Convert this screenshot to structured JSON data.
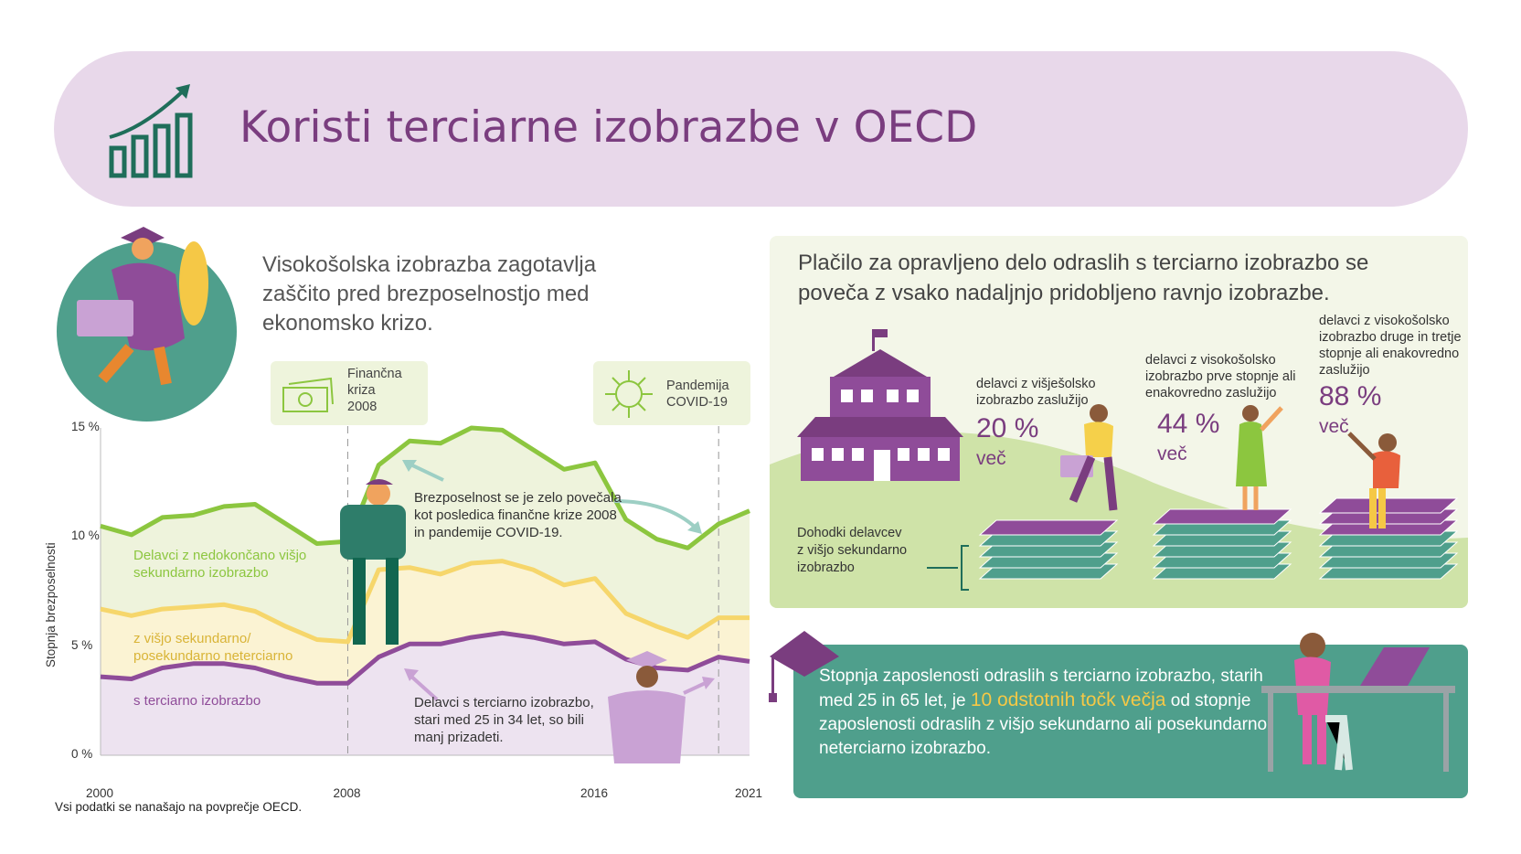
{
  "banner": {
    "title": "Koristi terciarne izobrazbe v OECD"
  },
  "intro": {
    "text": "Visokošolska izobrazba zagotavlja zaščito pred brezposelnostjo med ekonomsko krizo."
  },
  "events": [
    {
      "label": "Finančna kriza 2008",
      "lines": [
        "Finančna",
        "kriza",
        "2008"
      ],
      "icon": "money-icon"
    },
    {
      "label": "Pandemija COVID-19",
      "lines": [
        "Pandemija",
        "COVID-19"
      ],
      "icon": "virus-icon"
    }
  ],
  "chart_data": {
    "type": "line",
    "ylabel": "Stopnja brezposelnosti",
    "ylim": [
      0,
      15
    ],
    "yticks": [
      {
        "value": 0,
        "label": "0 %"
      },
      {
        "value": 5,
        "label": "5 %"
      },
      {
        "value": 10,
        "label": "10 %"
      },
      {
        "value": 15,
        "label": "15 %"
      }
    ],
    "xlim": [
      2000,
      2021
    ],
    "xticks": [
      "2000",
      "2008",
      "2016",
      "2021"
    ],
    "vlines": [
      2008,
      2020
    ],
    "series": [
      {
        "name": "Delavci z nedokončano višjo sekundarno izobrazbo",
        "color": "#8cc63f",
        "fill": "#eef3dc",
        "x": [
          2000,
          2001,
          2002,
          2003,
          2004,
          2005,
          2006,
          2007,
          2008,
          2009,
          2010,
          2011,
          2012,
          2013,
          2014,
          2015,
          2016,
          2017,
          2018,
          2019,
          2020,
          2021
        ],
        "values": [
          10.5,
          10.1,
          10.9,
          11.0,
          11.4,
          11.5,
          10.6,
          9.7,
          9.8,
          13.3,
          14.4,
          14.3,
          15.0,
          14.9,
          14.0,
          13.1,
          13.4,
          10.8,
          9.9,
          9.5,
          10.6,
          11.2
        ]
      },
      {
        "name": "z višjo sekundarno/ posekundarno neterciarno",
        "color": "#f6d66b",
        "fill": "#fbf3d3",
        "x": [
          2000,
          2001,
          2002,
          2003,
          2004,
          2005,
          2006,
          2007,
          2008,
          2009,
          2010,
          2011,
          2012,
          2013,
          2014,
          2015,
          2016,
          2017,
          2018,
          2019,
          2020,
          2021
        ],
        "values": [
          6.7,
          6.4,
          6.7,
          6.8,
          6.9,
          6.6,
          5.9,
          5.3,
          5.2,
          8.5,
          8.6,
          8.3,
          8.8,
          8.9,
          8.5,
          7.8,
          8.1,
          6.5,
          5.9,
          5.4,
          6.3,
          6.3
        ]
      },
      {
        "name": "s terciarno izobrazbo",
        "color": "#8f4c99",
        "fill": "#ede3f0",
        "x": [
          2000,
          2001,
          2002,
          2003,
          2004,
          2005,
          2006,
          2007,
          2008,
          2009,
          2010,
          2011,
          2012,
          2013,
          2014,
          2015,
          2016,
          2017,
          2018,
          2019,
          2020,
          2021
        ],
        "values": [
          3.6,
          3.5,
          4.0,
          4.2,
          4.2,
          4.0,
          3.6,
          3.3,
          3.3,
          4.5,
          5.1,
          5.1,
          5.4,
          5.6,
          5.4,
          5.1,
          5.2,
          4.4,
          4.0,
          3.9,
          4.5,
          4.3
        ]
      }
    ],
    "series_labels": [
      [
        "Delavci z nedokončano višjo",
        "sekundarno izobrazbo"
      ],
      [
        "z višjo sekundarno/",
        "posekundarno neterciarno"
      ],
      [
        "s terciarno izobrazbo"
      ]
    ],
    "annotations": [
      [
        "Brezposelnost se je zelo povečala",
        "kot posledica finančne krize 2008",
        "in pandemije COVID-19."
      ],
      [
        "Delavci s terciarno izobrazbo,",
        "stari med 25 in 34 let, so bili",
        "manj prizadeti."
      ]
    ]
  },
  "footnote": "Vsi podatki se nanašajo na povprečje OECD.",
  "pay": {
    "title": "Plačilo za opravljeno delo odraslih s terciarno izobrazbo se poveča z vsako nadaljnjo pridobljeno ravnjo izobrazbe.",
    "income_label": [
      "Dohodki delavcev",
      "z višjo sekundarno",
      "izobrazbo"
    ],
    "levels": [
      {
        "label": [
          "delavci z višješolsko",
          "izobrazbo zaslužijo"
        ],
        "percent": "20 %",
        "more": "več"
      },
      {
        "label": [
          "delavci z visokošolsko",
          "izobrazbo prve stopnje ali",
          "enakovredno zaslužijo"
        ],
        "percent": "44 %",
        "more": "več"
      },
      {
        "label": [
          "delavci z visokošolsko",
          "izobrazbo druge in tretje",
          "stopnje ali enakovredno",
          "zaslužijo"
        ],
        "percent": "88 %",
        "more": "več"
      }
    ]
  },
  "employment": {
    "before": "Stopnja zaposlenosti odraslih s terciarno izobrazbo, starih med 25 in 65 let, je ",
    "highlight": "10 odstotnih točk večja",
    "after": " od stopnje zaposlenosti odraslih z višjo sekundarno ali posekundarno neterciarno izobrazbo."
  },
  "colors": {
    "accent": "#7a3d7f",
    "banner": "#e8d8ea",
    "teal": "#4f9f8c",
    "green": "#8cc63f",
    "yellow": "#f6d66b",
    "purple": "#8f4c99",
    "highlight": "#f5c846"
  }
}
